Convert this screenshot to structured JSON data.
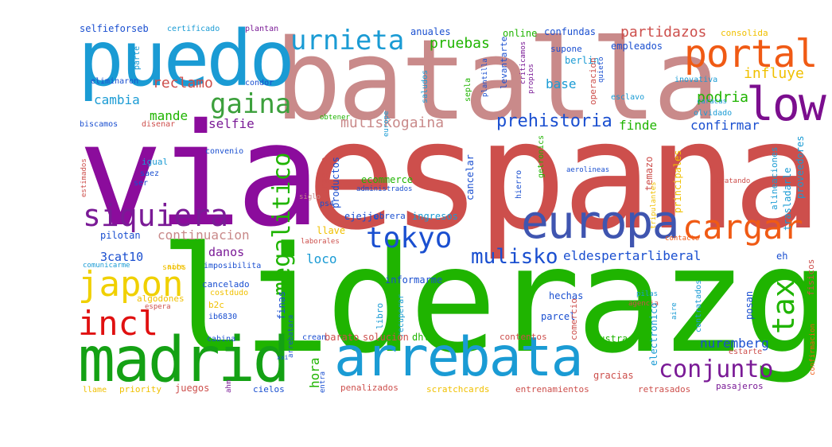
{
  "words": [
    {
      "text": "liderazgo",
      "color": "#1fb400"
    },
    {
      "text": "espana",
      "color": "#cd4f4c"
    },
    {
      "text": "via",
      "color": "#8b0c9c"
    },
    {
      "text": "batalla",
      "color": "#c98a8a"
    },
    {
      "text": "puedo",
      "color": "#1a9bd4"
    },
    {
      "text": "madrid",
      "color": "#14a114"
    },
    {
      "text": "arrebata",
      "color": "#1a9bd4"
    },
    {
      "text": "europa",
      "color": "#3f55b0"
    },
    {
      "text": "low",
      "color": "#7b0e8e"
    },
    {
      "text": "portal",
      "color": "#f05a14"
    },
    {
      "text": "siquiera",
      "color": "#7a1a96"
    },
    {
      "text": "cargar",
      "color": "#f05a14"
    },
    {
      "text": "japon",
      "color": "#f0d000"
    },
    {
      "text": "incl",
      "color": "#e01010"
    },
    {
      "text": "tokyo",
      "color": "#1a4fd0"
    },
    {
      "text": "urnieta",
      "color": "#1a9bd4"
    },
    {
      "text": "gaina",
      "color": "#3ca03c"
    },
    {
      "text": "megalitico",
      "color": "#1fb400"
    },
    {
      "text": "tax",
      "color": "#1fb400"
    },
    {
      "text": "conjunto",
      "color": "#7a1a96"
    },
    {
      "text": "mulisko",
      "color": "#1a4fd0"
    },
    {
      "text": "prehistoria",
      "color": "#1a4fd0"
    },
    {
      "text": "muliskogaina",
      "color": "#c98a8a"
    },
    {
      "text": "partidazos",
      "color": "#cd4f4c"
    },
    {
      "text": "reclamo",
      "color": "#cd4f4c"
    },
    {
      "text": "pruebas",
      "color": "#1fb400"
    },
    {
      "text": "influye",
      "color": "#f0c000"
    },
    {
      "text": "podria",
      "color": "#1fb400"
    },
    {
      "text": "cambia",
      "color": "#1a9bd4"
    },
    {
      "text": "mande",
      "color": "#1fb400"
    },
    {
      "text": "selfie",
      "color": "#7a1a96"
    },
    {
      "text": "finde",
      "color": "#1fb400"
    },
    {
      "text": "confirmar",
      "color": "#1a4fd0"
    },
    {
      "text": "continuacion",
      "color": "#c98a8a"
    },
    {
      "text": "eldespertarliberal",
      "color": "#1a4fd0"
    },
    {
      "text": "3cat10",
      "color": "#1a4fd0"
    },
    {
      "text": "danos",
      "color": "#7a1a96"
    },
    {
      "text": "loco",
      "color": "#1a9bd4"
    },
    {
      "text": "nuremberg",
      "color": "#1a4fd0"
    },
    {
      "text": "hora",
      "color": "#1fb400"
    },
    {
      "text": "base",
      "color": "#1a9bd4"
    },
    {
      "text": "urnieta",
      "color": "#1a9bd4"
    },
    {
      "text": "selfieforseb",
      "color": "#1a4fd0"
    },
    {
      "text": "certificado",
      "color": "#1a9bd4"
    },
    {
      "text": "plantan",
      "color": "#7a1a96"
    },
    {
      "text": "anuales",
      "color": "#1a4fd0"
    },
    {
      "text": "online",
      "color": "#1fb400"
    },
    {
      "text": "confundas",
      "color": "#1a4fd0"
    },
    {
      "text": "consolida",
      "color": "#f0c000"
    },
    {
      "text": "empleados",
      "color": "#1a4fd0"
    },
    {
      "text": "berlin",
      "color": "#1a9bd4"
    },
    {
      "text": "supone",
      "color": "#1a4fd0"
    },
    {
      "text": "eliminaron",
      "color": "#1a4fd0"
    },
    {
      "text": "saludos",
      "color": "#1a9bd4"
    },
    {
      "text": "condor",
      "color": "#1a4fd0"
    },
    {
      "text": "inovativa",
      "color": "#1a9bd4"
    },
    {
      "text": "esclavo",
      "color": "#1a9bd4"
    },
    {
      "text": "olvidado",
      "color": "#1a9bd4"
    },
    {
      "text": "biscamos",
      "color": "#1a4fd0"
    },
    {
      "text": "disenar",
      "color": "#cd4f4c"
    },
    {
      "text": "obtener",
      "color": "#1fb400"
    },
    {
      "text": "convenio",
      "color": "#1a4fd0"
    },
    {
      "text": "igual",
      "color": "#1a9bd4"
    },
    {
      "text": "saez",
      "color": "#1a4fd0"
    },
    {
      "text": "ser",
      "color": "#1a4fd0"
    },
    {
      "text": "estimados",
      "color": "#cd4f4c"
    },
    {
      "text": "urgente",
      "color": "#cd4f4c"
    },
    {
      "text": "productos",
      "color": "#1a4fd0"
    },
    {
      "text": "ecommerce",
      "color": "#1fb400"
    },
    {
      "text": "administrados",
      "color": "#1a4fd0"
    },
    {
      "text": "cancelar",
      "color": "#1a4fd0"
    },
    {
      "text": "aerolineas",
      "color": "#1a4fd0"
    },
    {
      "text": "temazo",
      "color": "#cd4f4c"
    },
    {
      "text": "tratando",
      "color": "#cd4f4c"
    },
    {
      "text": "ps4",
      "color": "#1a4fd0"
    },
    {
      "text": "siglo",
      "color": "#c98a8a"
    },
    {
      "text": "ejejje",
      "color": "#1a4fd0"
    },
    {
      "text": "obrera",
      "color": "#1a4fd0"
    },
    {
      "text": "ingresos",
      "color": "#1a9bd4"
    },
    {
      "text": "pilotan",
      "color": "#1a4fd0"
    },
    {
      "text": "llave",
      "color": "#f0c000"
    },
    {
      "text": "laborales",
      "color": "#cd4f4c"
    },
    {
      "text": "contacto",
      "color": "#f05a14"
    },
    {
      "text": "comunicarme",
      "color": "#1a9bd4"
    },
    {
      "text": "imposibilita",
      "color": "#1a4fd0"
    },
    {
      "text": "informarme",
      "color": "#1a4fd0"
    },
    {
      "text": "eh",
      "color": "#1a4fd0"
    },
    {
      "text": "snobs",
      "color": "#f0c000"
    },
    {
      "text": "cancelado",
      "color": "#1a4fd0"
    },
    {
      "text": "costdudo",
      "color": "#f0c000"
    },
    {
      "text": "algodones",
      "color": "#f0c000"
    },
    {
      "text": "b2c",
      "color": "#f0c000"
    },
    {
      "text": "ib6830",
      "color": "#1a4fd0"
    },
    {
      "text": "hechas",
      "color": "#1a4fd0"
    },
    {
      "text": "finas",
      "color": "#1a4fd0"
    },
    {
      "text": "pilas",
      "color": "#1a9bd4"
    },
    {
      "text": "agencia",
      "color": "#cd4f4c"
    },
    {
      "text": "posan",
      "color": "#1a4fd0"
    },
    {
      "text": "parcel",
      "color": "#1a4fd0"
    },
    {
      "text": "recuperar",
      "color": "#1a9bd4"
    },
    {
      "text": "espera",
      "color": "#cd4f4c"
    },
    {
      "text": "comercio",
      "color": "#cd4f4c"
    },
    {
      "text": "barato",
      "color": "#cd4f4c"
    },
    {
      "text": "solucion",
      "color": "#cd4f4c"
    },
    {
      "text": "dhl",
      "color": "#1fb400"
    },
    {
      "text": "contentos",
      "color": "#cd4f4c"
    },
    {
      "text": "fustra",
      "color": "#1fb400"
    },
    {
      "text": "cabina",
      "color": "#1a4fd0"
    },
    {
      "text": "crean",
      "color": "#1a4fd0"
    },
    {
      "text": "estarte",
      "color": "#cd4f4c"
    },
    {
      "text": "gracias",
      "color": "#cd4f4c"
    },
    {
      "text": "llame",
      "color": "#f0c000"
    },
    {
      "text": "priority",
      "color": "#f0c000"
    },
    {
      "text": "juegos",
      "color": "#cd4f4c"
    },
    {
      "text": "cielos",
      "color": "#1a4fd0"
    },
    {
      "text": "penalizados",
      "color": "#cd4f4c"
    },
    {
      "text": "scratchcards",
      "color": "#f0c000"
    },
    {
      "text": "entrenamientos",
      "color": "#cd4f4c"
    },
    {
      "text": "retrasados",
      "color": "#cd4f4c"
    },
    {
      "text": "pasajeros",
      "color": "#7a1a96"
    },
    {
      "text": "confirmacion",
      "color": "#f05a14"
    },
    {
      "text": "electronico",
      "color": "#1a9bd4"
    },
    {
      "text": "proveedores",
      "color": "#1a9bd4"
    },
    {
      "text": "trasladarle",
      "color": "#1a9bd4"
    },
    {
      "text": "principales",
      "color": "#f0c000"
    },
    {
      "text": "alineaciones",
      "color": "#1a9bd4"
    },
    {
      "text": "fisicos",
      "color": "#cd4f4c"
    },
    {
      "text": "contratados",
      "color": "#1a9bd4"
    },
    {
      "text": "tripulantes",
      "color": "#f0c000"
    },
    {
      "text": "caracas",
      "color": "#1a9bd4"
    },
    {
      "text": "hierro",
      "color": "#1a4fd0"
    },
    {
      "text": "getronics",
      "color": "#1fb400"
    },
    {
      "text": "levantarte",
      "color": "#1a4fd0"
    },
    {
      "text": "criticamos",
      "color": "#7a1a96"
    },
    {
      "text": "operacion",
      "color": "#cd4f4c"
    },
    {
      "text": "propios",
      "color": "#7a1a96"
    },
    {
      "text": "quieto",
      "color": "#1a4fd0"
    },
    {
      "text": "sepla",
      "color": "#1a9bd4"
    },
    {
      "text": "plantilla",
      "color": "#1fb400"
    },
    {
      "text": "parte",
      "color": "#1a4fd0"
    },
    {
      "text": "libro",
      "color": "#1a9bd4"
    },
    {
      "text": "arrebatara",
      "color": "#1a9bd4"
    },
    {
      "text": "europe",
      "color": "#1a4fd0"
    },
    {
      "text": "entra",
      "color": "#1a4fd0"
    },
    {
      "text": "xxi",
      "color": "#1a4fd0"
    },
    {
      "text": "ahm",
      "color": "#7a1a96"
    },
    {
      "text": "aire",
      "color": "#1a9bd4"
    },
    {
      "text": "cornel",
      "color": "#f0c000"
    }
  ]
}
